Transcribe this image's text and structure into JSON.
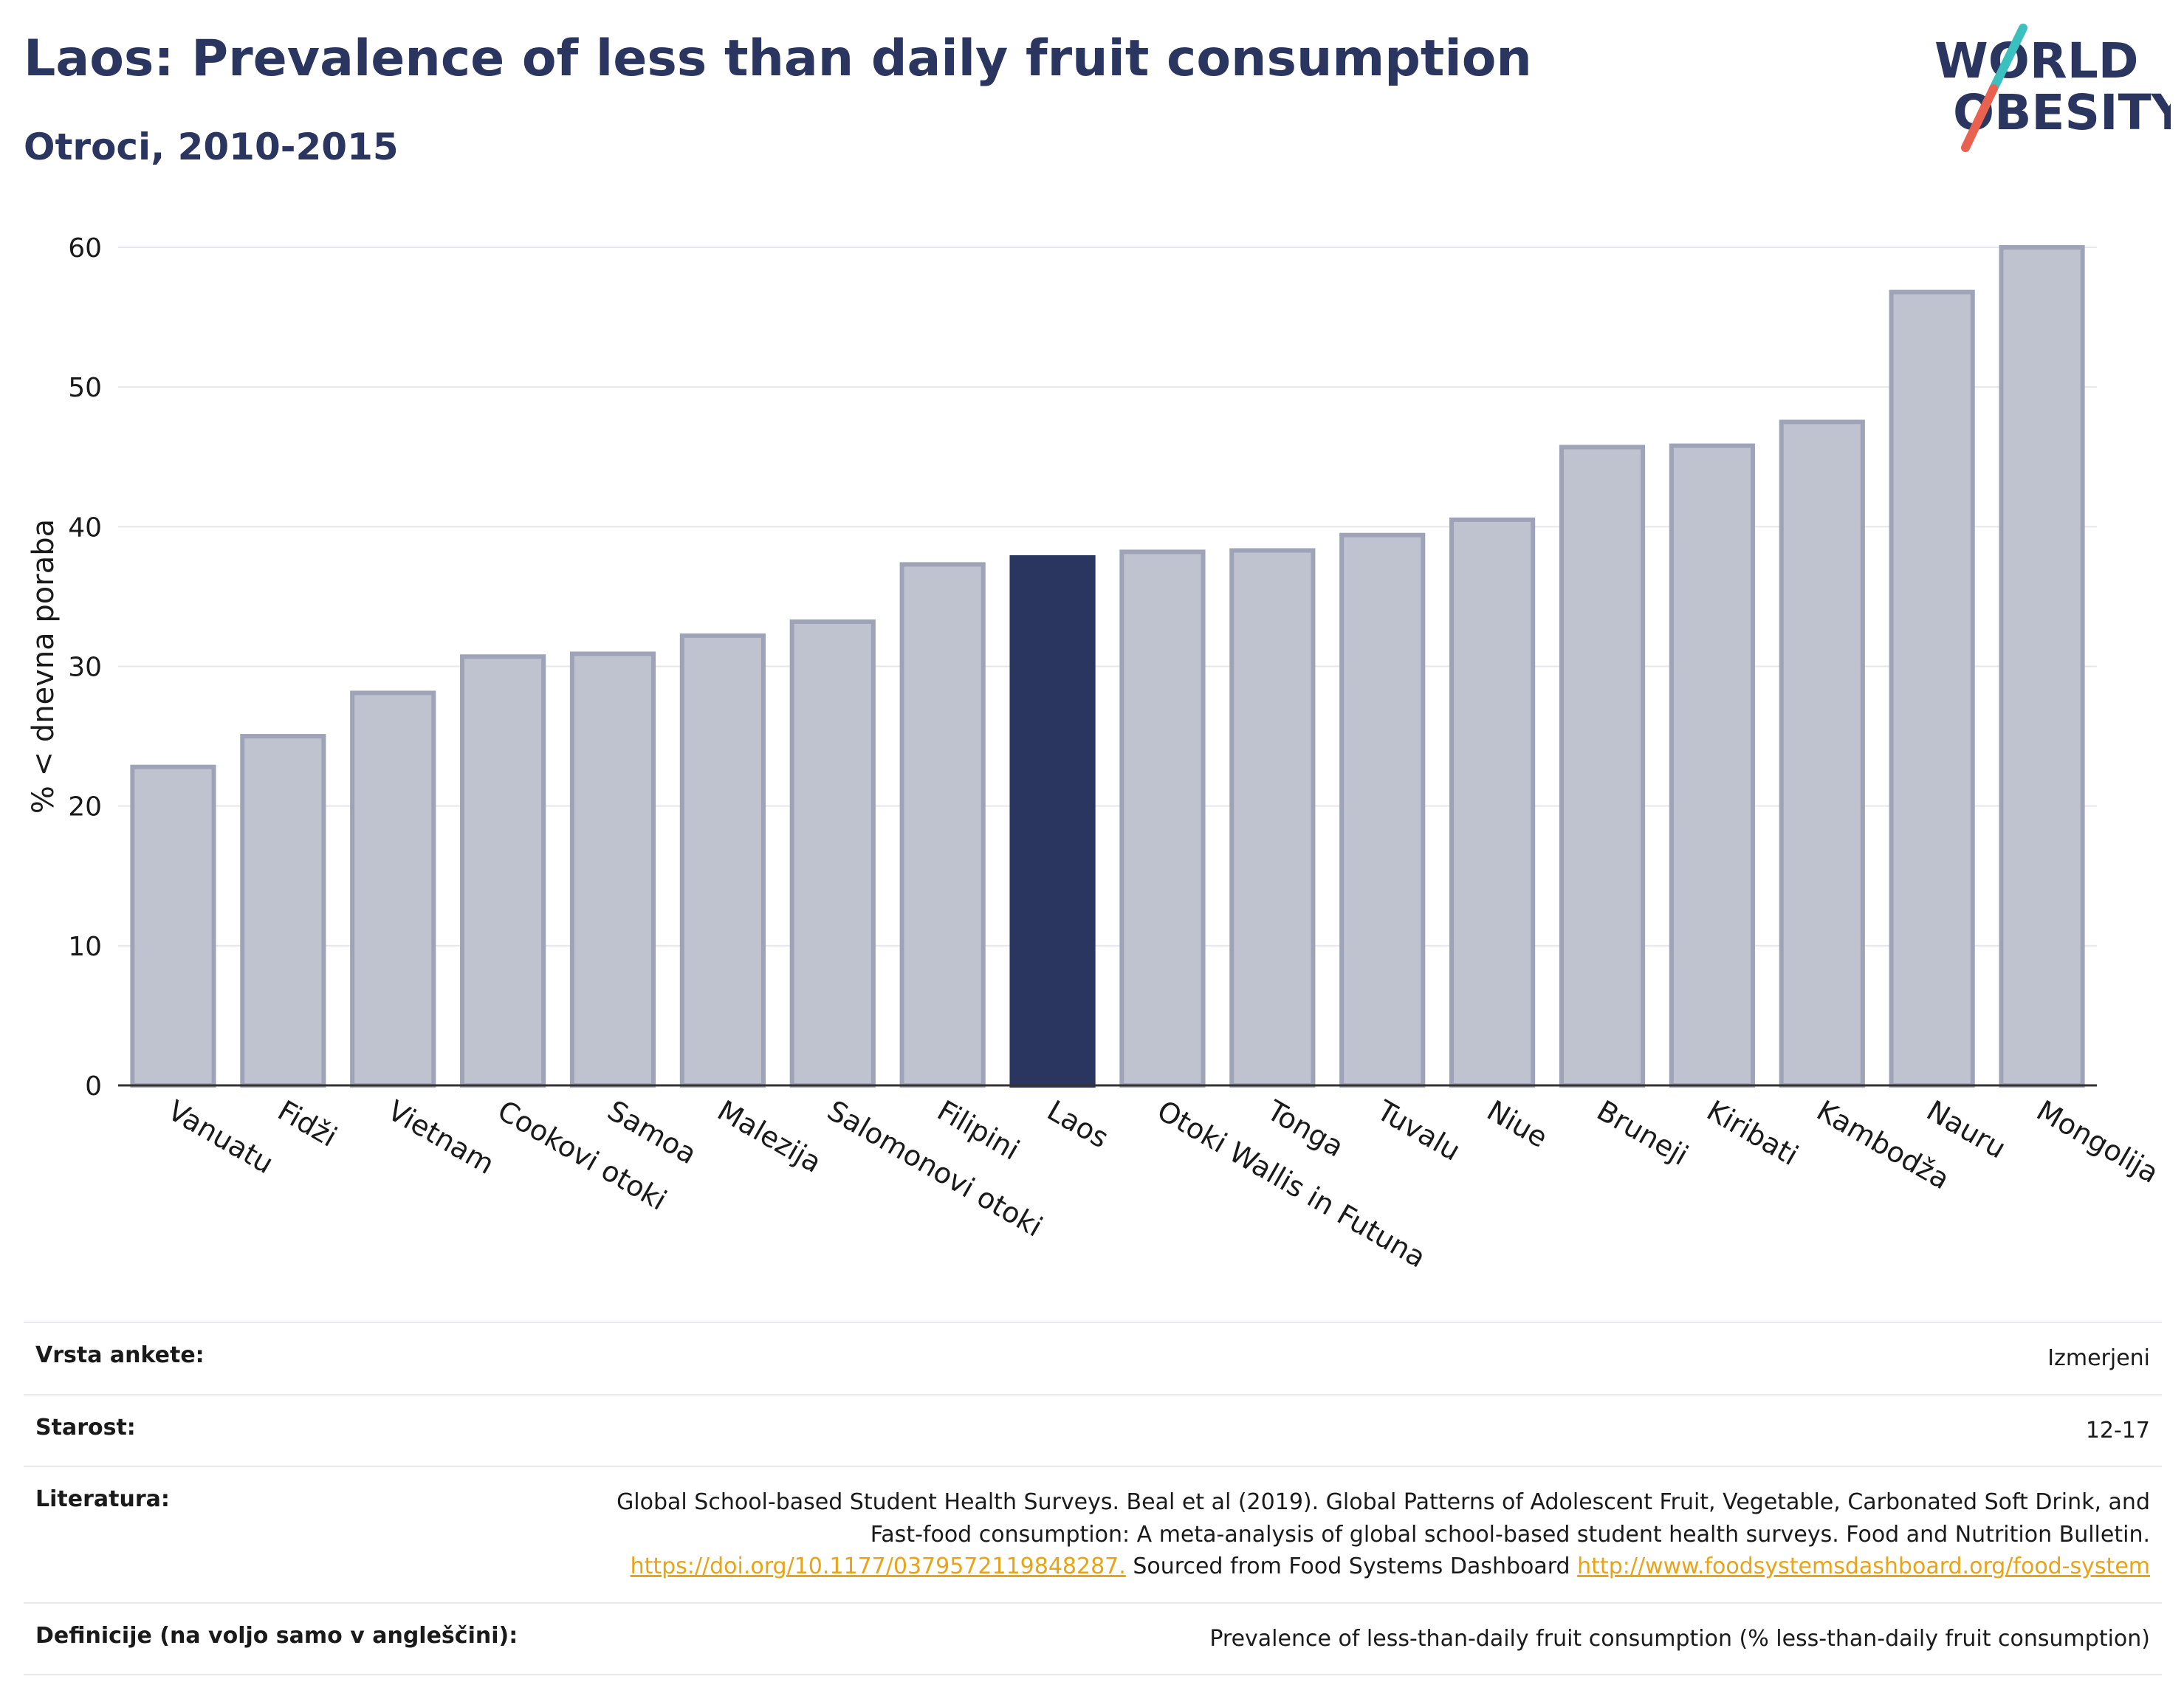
{
  "header": {
    "title": "Laos: Prevalence of less than daily fruit consumption",
    "subtitle": "Otroci, 2010-2015"
  },
  "logo": {
    "line1": "WORLD",
    "line2": "OBESITY",
    "colors": {
      "text": "#2a3560",
      "slash_top": "#3bbfbf",
      "slash_bottom": "#e8624f"
    }
  },
  "chart_data": {
    "type": "bar",
    "ylabel": "% < dnevna poraba",
    "xlabel": "",
    "ylim": [
      0,
      60
    ],
    "yticks": [
      0,
      10,
      20,
      30,
      40,
      50,
      60
    ],
    "grid": true,
    "legend": "none",
    "categories": [
      "Vanuatu",
      "Fidži",
      "Vietnam",
      "Cookovi otoki",
      "Samoa",
      "Malezija",
      "Salomonovi otoki",
      "Filipini",
      "Laos",
      "Otoki Wallis in Futuna",
      "Tonga",
      "Tuvalu",
      "Niue",
      "Bruneji",
      "Kiribati",
      "Kambodža",
      "Nauru",
      "Mongolija"
    ],
    "values": [
      22.8,
      25.0,
      28.1,
      30.7,
      30.9,
      32.2,
      33.2,
      37.3,
      37.8,
      38.2,
      38.3,
      39.4,
      40.5,
      45.7,
      45.8,
      47.5,
      56.8,
      60.0
    ],
    "highlight": "Laos",
    "colors": {
      "bar": "#bfc2cf",
      "bar_edge": "#9ea3b8",
      "highlight": "#2a3560"
    }
  },
  "info": {
    "rows": [
      {
        "key": "Vrsta ankete:",
        "value": "Izmerjeni"
      },
      {
        "key": "Starost:",
        "value": "12-17"
      },
      {
        "key": "Literatura:",
        "value_text": "Global School-based Student Health Surveys. Beal et al (2019). Global Patterns of Adolescent Fruit, Vegetable, Carbonated Soft Drink, and Fast-food consumption: A meta-analysis of global school-based student health surveys. Food and Nutrition Bulletin.",
        "link1": "https://doi.org/10.1177/0379572119848287.",
        "mid_text": "Sourced from Food Systems Dashboard",
        "link2": "http://www.foodsystemsdashboard.org/food-system"
      },
      {
        "key": "Definicije (na voljo samo v angleščini):",
        "value": "Prevalence of less-than-daily fruit consumption (% less-than-daily fruit consumption)"
      }
    ]
  }
}
